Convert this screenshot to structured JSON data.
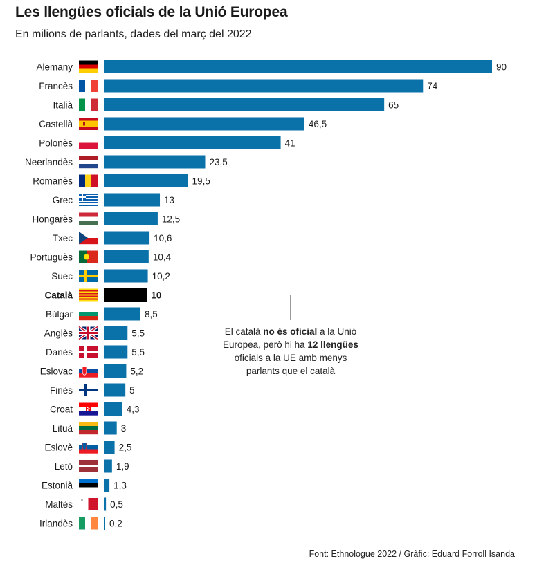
{
  "title": "Les llengües oficials de la Unió Europea",
  "subtitle": "En milions de parlants, dades del març del 2022",
  "source": "Font: Ethnologue 2022 / Gràfic: Eduard Forroll Isanda",
  "annotation": {
    "part1": "El català ",
    "bold1": "no és oficial",
    "part2": " a la Unió Europea, però hi ha ",
    "bold2": "12 llengües",
    "part3": " oficials a la UE amb menys parlants que el català"
  },
  "colors": {
    "bar": "#0a72a8",
    "highlight": "#000000"
  },
  "chart_data": {
    "type": "bar",
    "orientation": "horizontal",
    "highlight": "Català",
    "categories": [
      "Alemany",
      "Francès",
      "Italià",
      "Castellà",
      "Polonès",
      "Neerlandès",
      "Romanès",
      "Grec",
      "Hongarès",
      "Txec",
      "Portuguès",
      "Suec",
      "Català",
      "Búlgar",
      "Anglès",
      "Danès",
      "Eslovac",
      "Finès",
      "Croat",
      "Lituà",
      "Eslovè",
      "Letó",
      "Estonià",
      "Maltès",
      "Irlandès"
    ],
    "values": [
      90,
      74,
      65,
      46.5,
      41,
      23.5,
      19.5,
      13,
      12.5,
      10.6,
      10.4,
      10.2,
      10,
      8.5,
      5.5,
      5.5,
      5.2,
      5,
      4.3,
      3,
      2.5,
      1.9,
      1.3,
      0.5,
      0.2
    ],
    "value_labels": [
      "90",
      "74",
      "65",
      "46,5",
      "41",
      "23,5",
      "19,5",
      "13",
      "12,5",
      "10,6",
      "10,4",
      "10,2",
      "10",
      "8,5",
      "5,5",
      "5,5",
      "5,2",
      "5",
      "4,3",
      "3",
      "2,5",
      "1,9",
      "1,3",
      "0,5",
      "0,2"
    ],
    "flags": [
      "germany-flag",
      "france-flag",
      "italy-flag",
      "spain-flag",
      "poland-flag",
      "netherlands-flag",
      "romania-flag",
      "greece-flag",
      "hungary-flag",
      "czechia-flag",
      "portugal-flag",
      "sweden-flag",
      "catalonia-flag",
      "bulgaria-flag",
      "uk-flag",
      "denmark-flag",
      "slovakia-flag",
      "finland-flag",
      "croatia-flag",
      "lithuania-flag",
      "slovenia-flag",
      "latvia-flag",
      "estonia-flag",
      "malta-flag",
      "ireland-flag"
    ],
    "xlim": [
      0,
      90
    ],
    "grid": false,
    "legend": "none"
  }
}
